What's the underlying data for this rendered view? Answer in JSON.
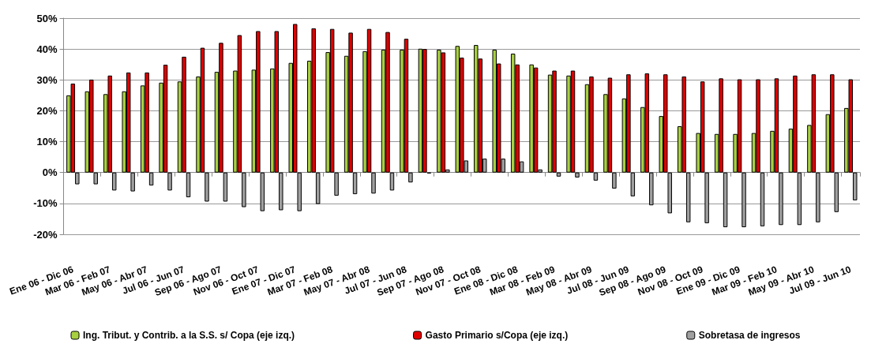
{
  "chart_data": {
    "type": "bar",
    "categories": [
      "Ene 06 - Dic 06",
      null,
      "Mar 06 - Feb 07",
      null,
      "May 06 - Abr 07",
      null,
      "Jul 06 - Jun 07",
      null,
      "Sep 06 - Ago 07",
      null,
      "Nov 06 - Oct 07",
      null,
      "Ene 07 - Dic 07",
      null,
      "Mar 07 - Feb 08",
      null,
      "May 07 - Abr 08",
      null,
      "Jul 07 - Jun 08",
      null,
      "Sep 07 - Ago 08",
      null,
      "Nov 07 - Oct 08",
      null,
      "Ene 08 - Dic 08",
      null,
      "Mar 08 - Feb 09",
      null,
      "May 08 - Abr 09",
      null,
      "Jul 08 - Jun 09",
      null,
      "Sep 08 - Ago 09",
      null,
      "Nov 08 - Oct 09",
      null,
      "Ene 09 - Dic 09",
      null,
      "Mar 09 - Feb 10",
      null,
      "May 09 - Abr 10",
      null,
      "Jul 09 - Jun 10"
    ],
    "series": [
      {
        "name": "Ing. Tribut. y Contrib. a la S.S. s/ Copa (eje izq.)",
        "color": "#a8d040",
        "values": [
          25.0,
          26.3,
          25.4,
          26.3,
          28.2,
          29.1,
          29.5,
          31.1,
          32.6,
          33.0,
          33.3,
          33.7,
          35.5,
          36.2,
          39.0,
          37.8,
          39.3,
          39.8,
          39.8,
          40.1,
          39.8,
          41.0,
          41.3,
          39.8,
          38.5,
          35.0,
          31.7,
          31.4,
          28.6,
          25.4,
          24.0,
          21.2,
          18.3,
          15.0,
          12.8,
          12.5,
          12.5,
          12.8,
          13.5,
          14.2,
          15.4,
          18.9,
          20.9
        ]
      },
      {
        "name": "Gasto Primario s/Copa (eje izq.)",
        "color": "#e00000",
        "values": [
          28.8,
          30.1,
          31.4,
          32.4,
          32.4,
          34.9,
          37.5,
          40.4,
          42.0,
          44.5,
          45.8,
          45.8,
          48.1,
          46.7,
          46.5,
          45.3,
          46.5,
          45.5,
          43.3,
          40.0,
          38.9,
          37.2,
          36.9,
          35.3,
          35.0,
          34.0,
          33.0,
          33.0,
          31.1,
          30.7,
          31.8,
          32.1,
          31.8,
          31.1,
          29.5,
          30.5,
          30.2,
          30.2,
          30.5,
          31.4,
          31.8,
          31.8,
          30.2
        ]
      },
      {
        "name": "Sobretasa de ingresos",
        "color": "#a0a0a0",
        "values": [
          -3.8,
          -3.8,
          -5.8,
          -6.1,
          -4.2,
          -5.8,
          -8.0,
          -9.4,
          -9.4,
          -11.2,
          -12.5,
          -12.2,
          -12.5,
          -10.2,
          -7.5,
          -7.0,
          -6.8,
          -5.8,
          -3.2,
          -0.3,
          1.0,
          3.9,
          4.5,
          4.5,
          3.6,
          1.0,
          -1.3,
          -1.6,
          -2.6,
          -5.2,
          -7.7,
          -10.6,
          -13.2,
          -16.1,
          -16.4,
          -17.7,
          -17.7,
          -17.4,
          -17.0,
          -17.0,
          -16.1,
          -12.8,
          -9.0
        ]
      }
    ],
    "ylim": [
      -20,
      50
    ],
    "yticks": [
      {
        "value": -20,
        "label": "-20%"
      },
      {
        "value": -10,
        "label": "-10%"
      },
      {
        "value": 0,
        "label": "0%"
      },
      {
        "value": 10,
        "label": "10%"
      },
      {
        "value": 20,
        "label": "20%"
      },
      {
        "value": 30,
        "label": "30%"
      },
      {
        "value": 40,
        "label": "40%"
      },
      {
        "value": 50,
        "label": "50%"
      }
    ],
    "grid": "y",
    "legend": "bottom"
  }
}
